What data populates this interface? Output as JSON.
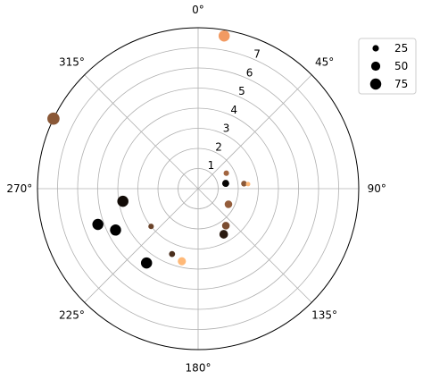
{
  "chart_data": {
    "type": "scatter",
    "projection": "polar",
    "theta_direction": "clockwise",
    "theta_zero_location": "N",
    "r_range": [
      0,
      8
    ],
    "r_tick_labels": [
      "1",
      "2",
      "3",
      "4",
      "5",
      "6",
      "7"
    ],
    "r_tick_values": [
      1,
      2,
      3,
      4,
      5,
      6,
      7
    ],
    "r_label_angle_deg": 22.5,
    "theta_tick_labels": [
      "0°",
      "45°",
      "90°",
      "135°",
      "180°",
      "225°",
      "270°",
      "315°"
    ],
    "theta_tick_values_deg": [
      0,
      45,
      90,
      135,
      180,
      225,
      270,
      315
    ],
    "grid": true,
    "colormap": "copper",
    "legend": {
      "placement": "upper right, outside plot",
      "entries": [
        {
          "label": "25",
          "size": 25
        },
        {
          "label": "50",
          "size": 50
        },
        {
          "label": "75",
          "size": 75
        }
      ]
    },
    "points": [
      {
        "theta_deg": 9.7,
        "r": 7.7,
        "size": 75,
        "color": "#f29a62"
      },
      {
        "theta_deg": 61.3,
        "r": 1.6,
        "size": 18,
        "color": "#a2653f"
      },
      {
        "theta_deg": 79.2,
        "r": 1.4,
        "size": 30,
        "color": "#050302"
      },
      {
        "theta_deg": 83.8,
        "r": 2.3,
        "size": 20,
        "color": "#8a5837"
      },
      {
        "theta_deg": 84.8,
        "r": 2.5,
        "size": 12,
        "color": "#ffb978"
      },
      {
        "theta_deg": 117.2,
        "r": 1.7,
        "size": 35,
        "color": "#945d3b"
      },
      {
        "theta_deg": 143.1,
        "r": 2.3,
        "size": 35,
        "color": "#7a4d31"
      },
      {
        "theta_deg": 150.6,
        "r": 2.6,
        "size": 45,
        "color": "#2a1a10"
      },
      {
        "theta_deg": 192.6,
        "r": 3.7,
        "size": 40,
        "color": "#ffb978"
      },
      {
        "theta_deg": 201.8,
        "r": 3.5,
        "size": 22,
        "color": "#4a2e1d"
      },
      {
        "theta_deg": 214.8,
        "r": 4.5,
        "size": 75,
        "color": "#000000"
      },
      {
        "theta_deg": 231.3,
        "r": 3.0,
        "size": 18,
        "color": "#6a4229"
      },
      {
        "theta_deg": 243.4,
        "r": 4.6,
        "size": 75,
        "color": "#000000"
      },
      {
        "theta_deg": 250.4,
        "r": 5.3,
        "size": 75,
        "color": "#000000"
      },
      {
        "theta_deg": 260.5,
        "r": 3.8,
        "size": 75,
        "color": "#120b07"
      },
      {
        "theta_deg": 295.8,
        "r": 8.0,
        "size": 90,
        "color": "#8a5837"
      }
    ]
  }
}
